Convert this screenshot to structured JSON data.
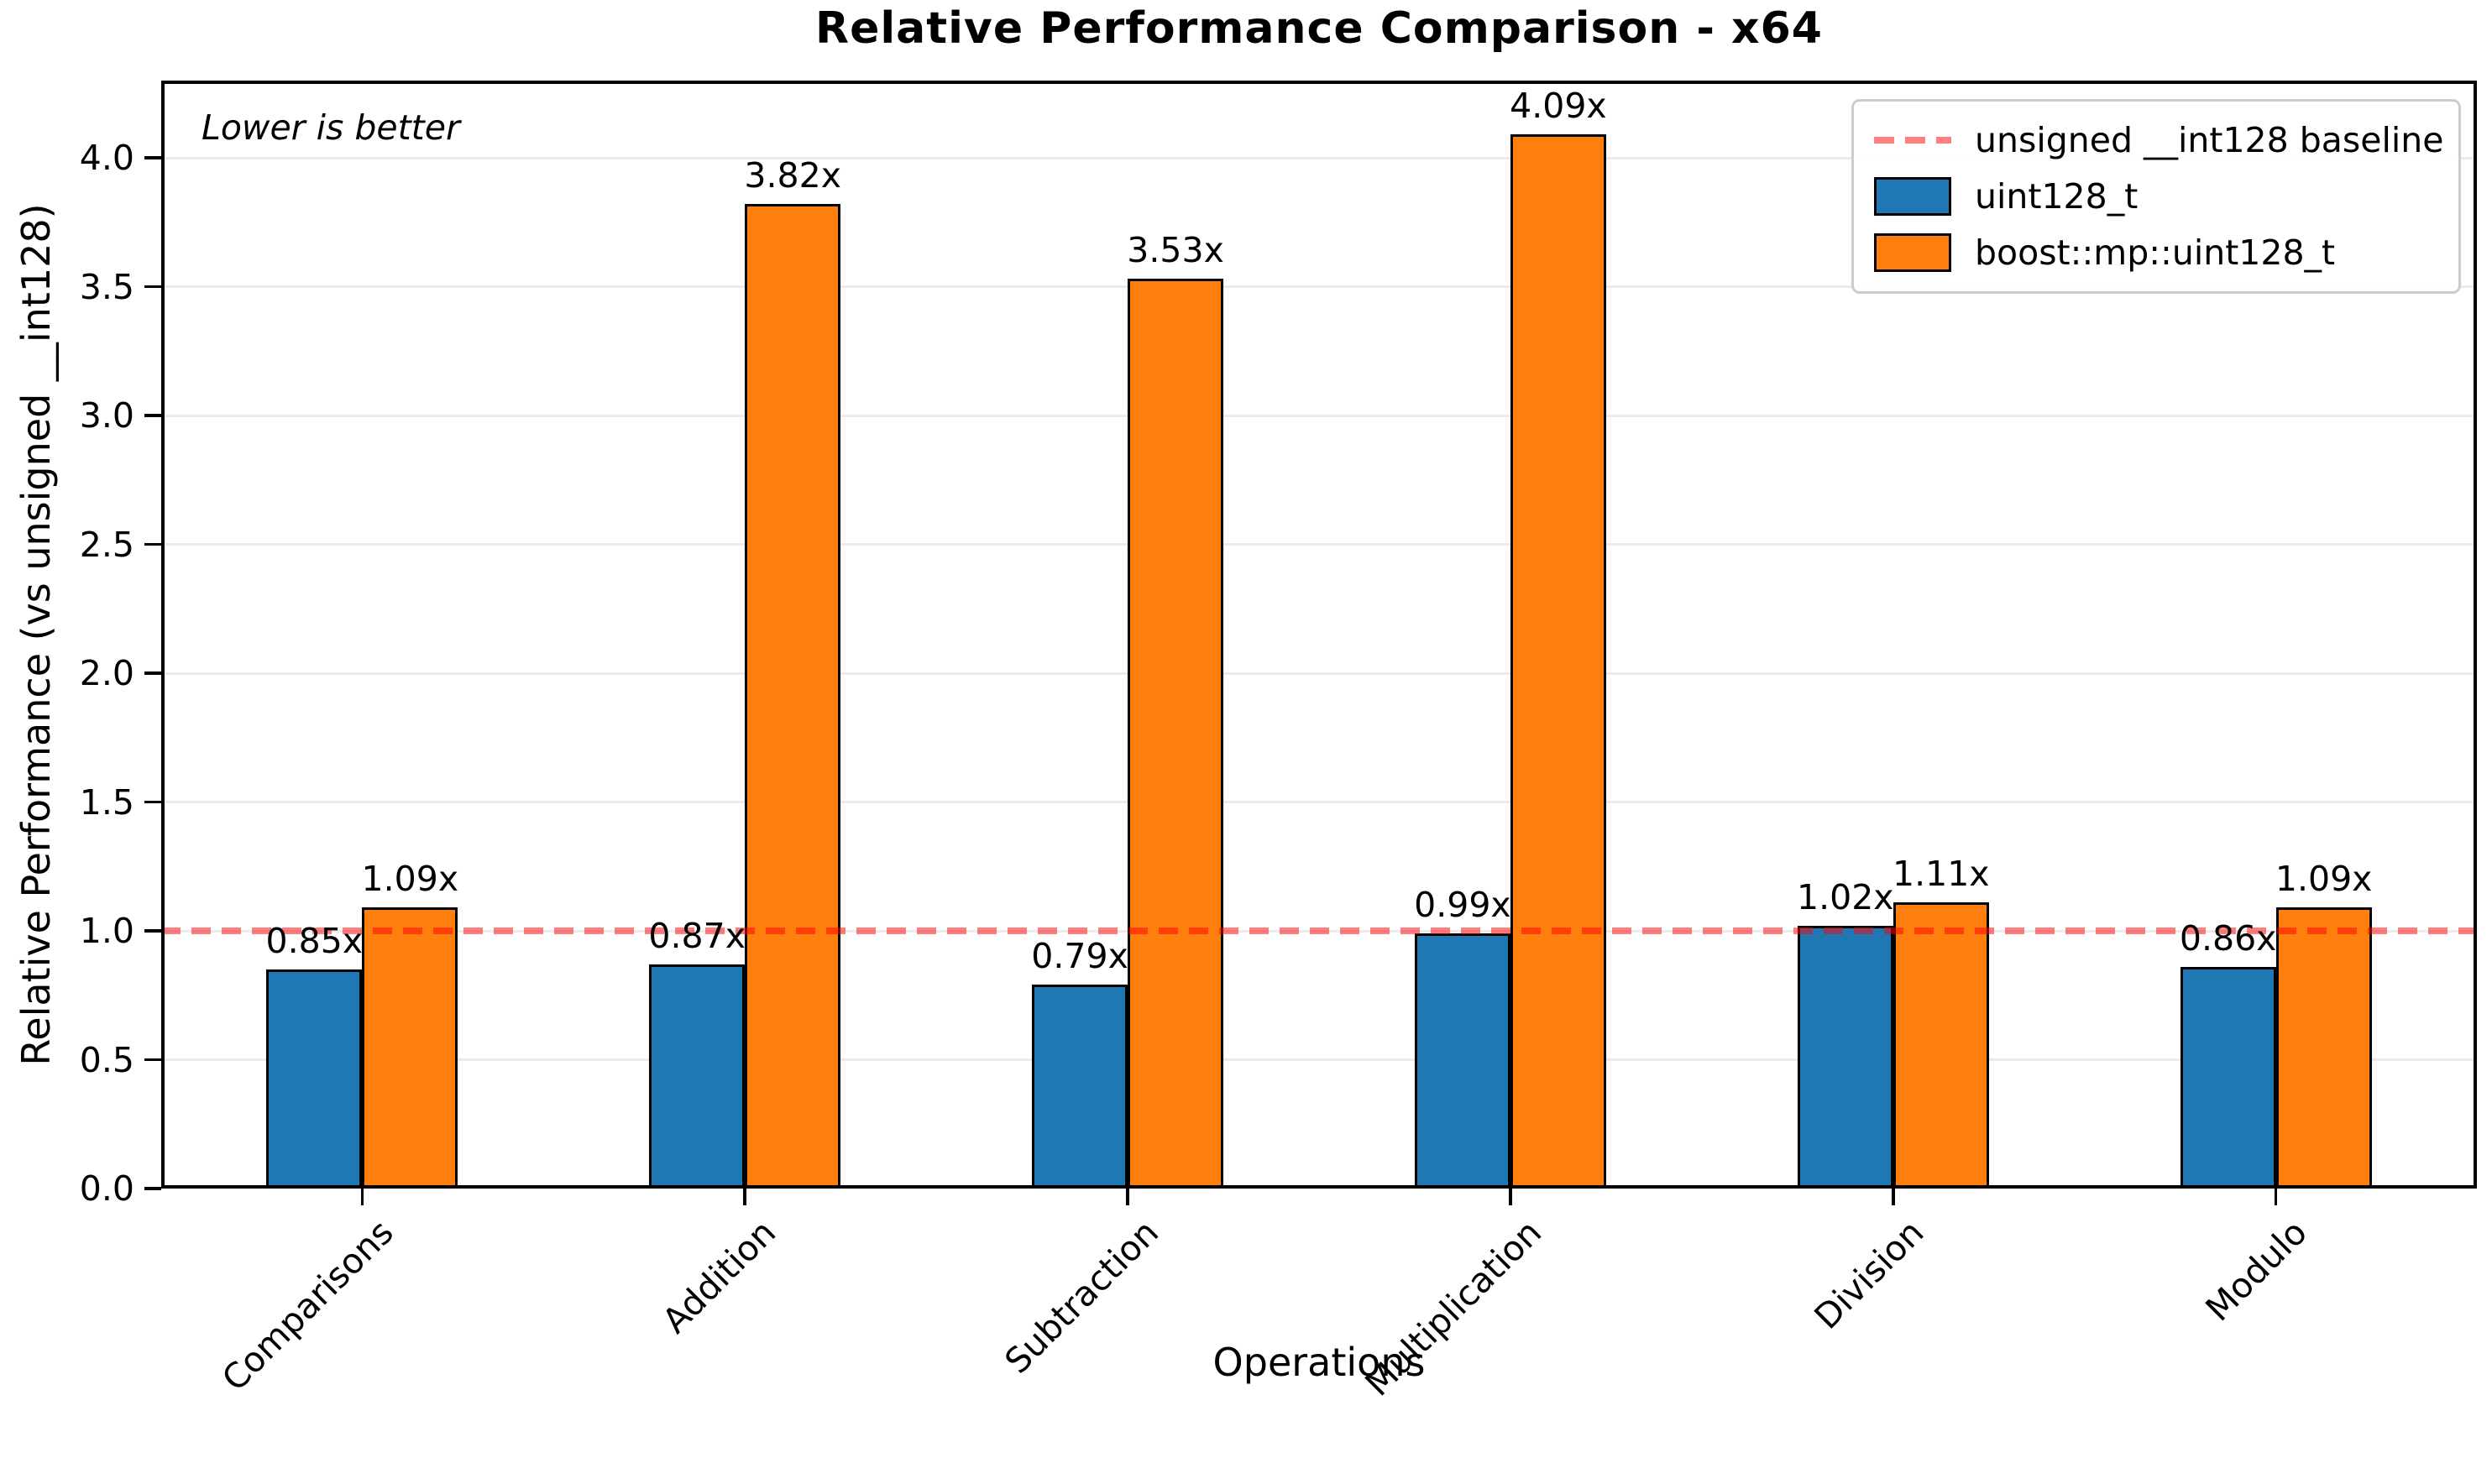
{
  "chart_data": {
    "type": "bar",
    "title": "Relative Performance Comparison - x64",
    "xlabel": "Operations",
    "ylabel": "Relative Performance (vs unsigned __int128)",
    "note": "Lower is better",
    "categories": [
      "Comparisons",
      "Addition",
      "Subtraction",
      "Multiplication",
      "Division",
      "Modulo"
    ],
    "series": [
      {
        "name": "uint128_t",
        "color": "#1f77b4",
        "values": [
          0.85,
          0.87,
          0.79,
          0.99,
          1.02,
          0.86
        ],
        "bar_labels": [
          "0.85x",
          "0.87x",
          "0.79x",
          "0.99x",
          "1.02x",
          "0.86x"
        ]
      },
      {
        "name": "boost::mp::uint128_t",
        "color": "#ff7f0e",
        "values": [
          1.09,
          3.82,
          3.53,
          4.09,
          1.11,
          1.09
        ],
        "bar_labels": [
          "1.09x",
          "3.82x",
          "3.53x",
          "4.09x",
          "1.11x",
          "1.09x"
        ]
      }
    ],
    "baseline": {
      "value": 1.0,
      "label": "unsigned __int128 baseline",
      "color": "#ff0000",
      "alpha": 0.5
    },
    "yticks": [
      0.0,
      0.5,
      1.0,
      1.5,
      2.0,
      2.5,
      3.0,
      3.5,
      4.0
    ],
    "ytick_labels": [
      "0.0",
      "0.5",
      "1.0",
      "1.5",
      "2.0",
      "2.5",
      "3.0",
      "3.5",
      "4.0"
    ],
    "ylim": [
      0,
      4.3
    ],
    "grid": "horizontal-only",
    "gridline_color": "#ebebeb",
    "axis_color": "#000000",
    "legend_position": "upper right"
  }
}
